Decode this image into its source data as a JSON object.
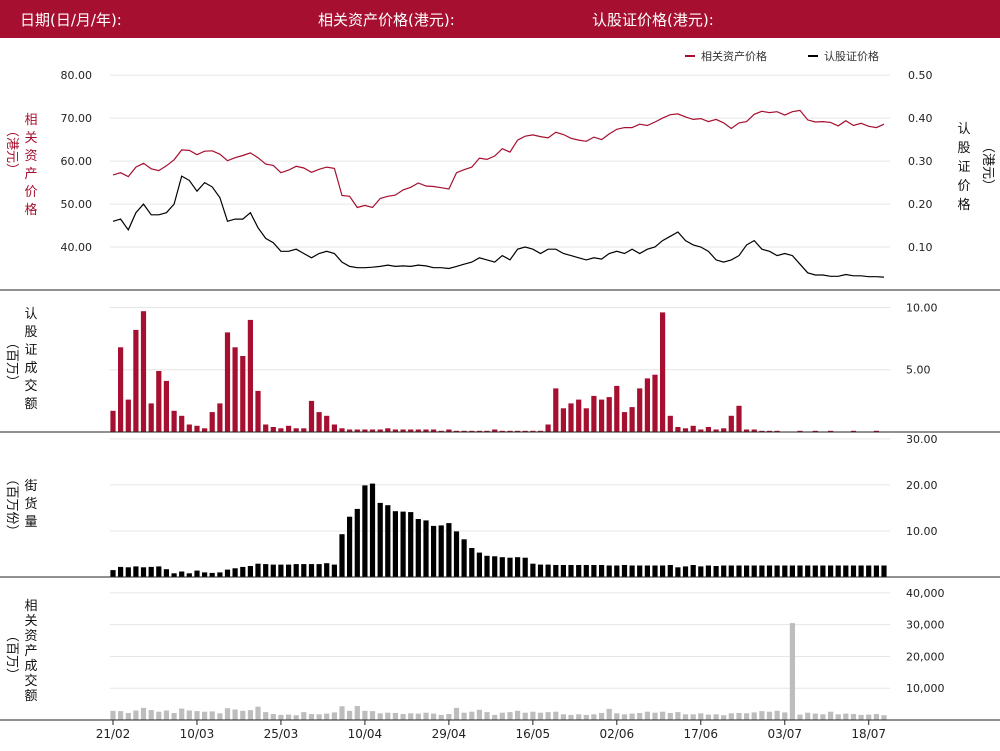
{
  "header": {
    "date_label": "日期(日/月/年):",
    "asset_label": "相关资产价格(港元):",
    "warrant_label": "认股证价格(港元):"
  },
  "colors": {
    "header_bg": "#a60f2f",
    "asset": "#a60f2f",
    "warrant": "#000000",
    "outstanding": "#000000",
    "asset_turnover": "#bdbdbd"
  },
  "chart_data": [
    {
      "type": "line",
      "legend": [
        "相关资产价格",
        "认股证价格"
      ],
      "legend_position": "top-right",
      "left_axis_label": [
        "相",
        "关",
        "资",
        "产",
        "价",
        "格",
        "（港元）"
      ],
      "right_axis_label": [
        "认",
        "股",
        "证",
        "价",
        "格",
        "（港元）"
      ],
      "left_ticks": [
        "80.00",
        "70.00",
        "60.00",
        "50.00",
        "40.00"
      ],
      "right_ticks": [
        "0.50",
        "0.40",
        "0.30",
        "0.20",
        "0.10"
      ],
      "ylim_left": [
        30,
        84
      ],
      "ylim_right": [
        0,
        0.54
      ],
      "series": [
        {
          "name": "相关资产价格",
          "axis": "left",
          "values": [
            56.8,
            57.3,
            56.4,
            58.6,
            59.5,
            58.2,
            57.8,
            58.9,
            60.3,
            62.6,
            62.5,
            61.5,
            62.3,
            62.4,
            61.6,
            60.1,
            60.8,
            61.3,
            61.9,
            60.8,
            59.3,
            59.0,
            57.3,
            57.9,
            58.8,
            58.4,
            57.4,
            58.1,
            58.6,
            58.3,
            52.0,
            51.8,
            49.2,
            49.7,
            49.2,
            51.3,
            51.8,
            52.1,
            53.3,
            53.9,
            54.9,
            54.2,
            54.1,
            53.8,
            53.5,
            57.3,
            58.0,
            58.6,
            60.7,
            60.4,
            61.2,
            62.9,
            62.1,
            64.9,
            65.8,
            66.1,
            65.7,
            65.4,
            66.7,
            66.2,
            65.3,
            64.9,
            64.6,
            65.6,
            65.0,
            66.3,
            67.4,
            67.8,
            67.8,
            68.6,
            68.3,
            69.1,
            70.0,
            70.8,
            71.0,
            70.3,
            69.7,
            69.9,
            69.2,
            69.7,
            68.9,
            67.6,
            68.9,
            69.2,
            70.9,
            71.6,
            71.3,
            71.5,
            70.7,
            71.5,
            71.8,
            69.6,
            69.1,
            69.2,
            69.0,
            68.2,
            69.4,
            68.3,
            68.8,
            68.1,
            67.8,
            68.6
          ]
        },
        {
          "name": "认股证价格",
          "axis": "right",
          "values": [
            0.16,
            0.165,
            0.14,
            0.18,
            0.2,
            0.175,
            0.175,
            0.18,
            0.2,
            0.265,
            0.255,
            0.23,
            0.25,
            0.24,
            0.215,
            0.16,
            0.165,
            0.165,
            0.18,
            0.145,
            0.12,
            0.11,
            0.09,
            0.09,
            0.095,
            0.085,
            0.075,
            0.085,
            0.09,
            0.085,
            0.065,
            0.055,
            0.052,
            0.052,
            0.053,
            0.055,
            0.058,
            0.055,
            0.056,
            0.055,
            0.058,
            0.056,
            0.052,
            0.052,
            0.05,
            0.055,
            0.06,
            0.065,
            0.075,
            0.07,
            0.065,
            0.08,
            0.07,
            0.095,
            0.1,
            0.095,
            0.085,
            0.095,
            0.095,
            0.085,
            0.08,
            0.075,
            0.07,
            0.075,
            0.072,
            0.085,
            0.09,
            0.085,
            0.095,
            0.085,
            0.095,
            0.1,
            0.115,
            0.125,
            0.135,
            0.115,
            0.105,
            0.1,
            0.09,
            0.07,
            0.065,
            0.07,
            0.08,
            0.105,
            0.115,
            0.095,
            0.09,
            0.08,
            0.085,
            0.08,
            0.06,
            0.04,
            0.035,
            0.035,
            0.032,
            0.032,
            0.036,
            0.033,
            0.033,
            0.031,
            0.031,
            0.03
          ]
        }
      ]
    },
    {
      "type": "bar",
      "ylabel": [
        "认",
        "股",
        "证",
        "成",
        "交",
        "额",
        "（百万）"
      ],
      "ticks": [
        "10.00",
        "5.00"
      ],
      "ylim": [
        0,
        11.4
      ],
      "values": [
        1.7,
        6.8,
        2.6,
        8.2,
        9.7,
        2.3,
        4.9,
        4.1,
        1.7,
        1.3,
        0.6,
        0.5,
        0.3,
        1.6,
        2.3,
        8.0,
        6.8,
        6.1,
        9.0,
        3.3,
        0.6,
        0.4,
        0.3,
        0.5,
        0.3,
        0.3,
        2.5,
        1.6,
        1.3,
        0.6,
        0.3,
        0.2,
        0.2,
        0.2,
        0.2,
        0.2,
        0.3,
        0.2,
        0.2,
        0.2,
        0.2,
        0.2,
        0.2,
        0.1,
        0.2,
        0.1,
        0.1,
        0.1,
        0.1,
        0.1,
        0.2,
        0.1,
        0.1,
        0.1,
        0.1,
        0.1,
        0.1,
        0.6,
        3.5,
        1.9,
        2.3,
        2.6,
        1.9,
        2.9,
        2.6,
        2.8,
        3.7,
        1.6,
        2.0,
        3.5,
        4.3,
        4.6,
        9.6,
        1.3,
        0.4,
        0.3,
        0.5,
        0.2,
        0.4,
        0.2,
        0.3,
        1.3,
        2.1,
        0.2,
        0.2,
        0.1,
        0.1,
        0.1,
        0,
        0,
        0.1,
        0,
        0.1,
        0,
        0.1,
        0,
        0,
        0.1,
        0,
        0,
        0.1,
        0
      ]
    },
    {
      "type": "bar",
      "ylabel": [
        "（百万份）",
        "街",
        "货",
        "量"
      ],
      "ticks": [
        "30.00",
        "20.00",
        "10.00"
      ],
      "ylim": [
        0,
        31.5
      ],
      "values": [
        1.5,
        2.2,
        2.1,
        2.3,
        2.1,
        2.2,
        2.3,
        1.7,
        0.8,
        1.2,
        0.8,
        1.4,
        1.0,
        0.9,
        1.0,
        1.6,
        1.9,
        2.2,
        2.4,
        2.9,
        2.8,
        2.7,
        2.7,
        2.7,
        2.8,
        2.8,
        2.8,
        2.8,
        3.0,
        2.7,
        9.3,
        13.1,
        14.8,
        19.9,
        20.3,
        16.1,
        15.6,
        14.3,
        14.2,
        14.1,
        12.6,
        12.3,
        11.1,
        11.2,
        11.7,
        9.9,
        8.2,
        6.3,
        5.3,
        4.6,
        4.5,
        4.3,
        4.2,
        4.3,
        4.2,
        2.9,
        2.7,
        2.7,
        2.6,
        2.6,
        2.6,
        2.6,
        2.6,
        2.6,
        2.6,
        2.5,
        2.5,
        2.6,
        2.5,
        2.5,
        2.5,
        2.5,
        2.5,
        2.6,
        2.1,
        2.3,
        2.6,
        2.3,
        2.5,
        2.4,
        2.5,
        2.5,
        2.5,
        2.5,
        2.5,
        2.5,
        2.5,
        2.5,
        2.5,
        2.5,
        2.5,
        2.5,
        2.5,
        2.5,
        2.5,
        2.5,
        2.5,
        2.5,
        2.5,
        2.5,
        2.5,
        2.5
      ]
    },
    {
      "type": "bar",
      "ylabel": [
        "相",
        "关",
        "资",
        "产",
        "成",
        "交",
        "额",
        "（百万）"
      ],
      "ticks": [
        "40,000",
        "30,000",
        "20,000",
        "10,000"
      ],
      "ylim": [
        0,
        45000
      ],
      "x_ticks": [
        "21/02",
        "10/03",
        "25/03",
        "10/04",
        "29/04",
        "16/05",
        "02/06",
        "17/06",
        "03/07",
        "18/07"
      ],
      "values": [
        2900,
        2800,
        2200,
        3000,
        3800,
        3100,
        2600,
        3000,
        2200,
        3600,
        3000,
        2800,
        2600,
        2700,
        2100,
        3700,
        3300,
        2900,
        3100,
        4200,
        2500,
        1900,
        1600,
        1700,
        1500,
        2500,
        1900,
        1800,
        2000,
        2400,
        4300,
        2900,
        4400,
        2900,
        2800,
        2100,
        2300,
        2200,
        1900,
        2100,
        2000,
        2300,
        2000,
        1600,
        1900,
        3800,
        2300,
        2600,
        3200,
        2500,
        1600,
        2300,
        2500,
        2900,
        2300,
        2600,
        2300,
        2500,
        2600,
        1800,
        1600,
        1800,
        1600,
        1800,
        2200,
        3500,
        2100,
        1800,
        2000,
        2200,
        2600,
        2300,
        2600,
        2200,
        2500,
        1800,
        1800,
        2100,
        1700,
        1800,
        1500,
        2100,
        2200,
        2100,
        2400,
        2800,
        2600,
        2900,
        2400,
        30500,
        1700,
        2300,
        2000,
        1800,
        2600,
        1800,
        2000,
        1900,
        1600,
        1700,
        1900,
        1500
      ]
    }
  ]
}
